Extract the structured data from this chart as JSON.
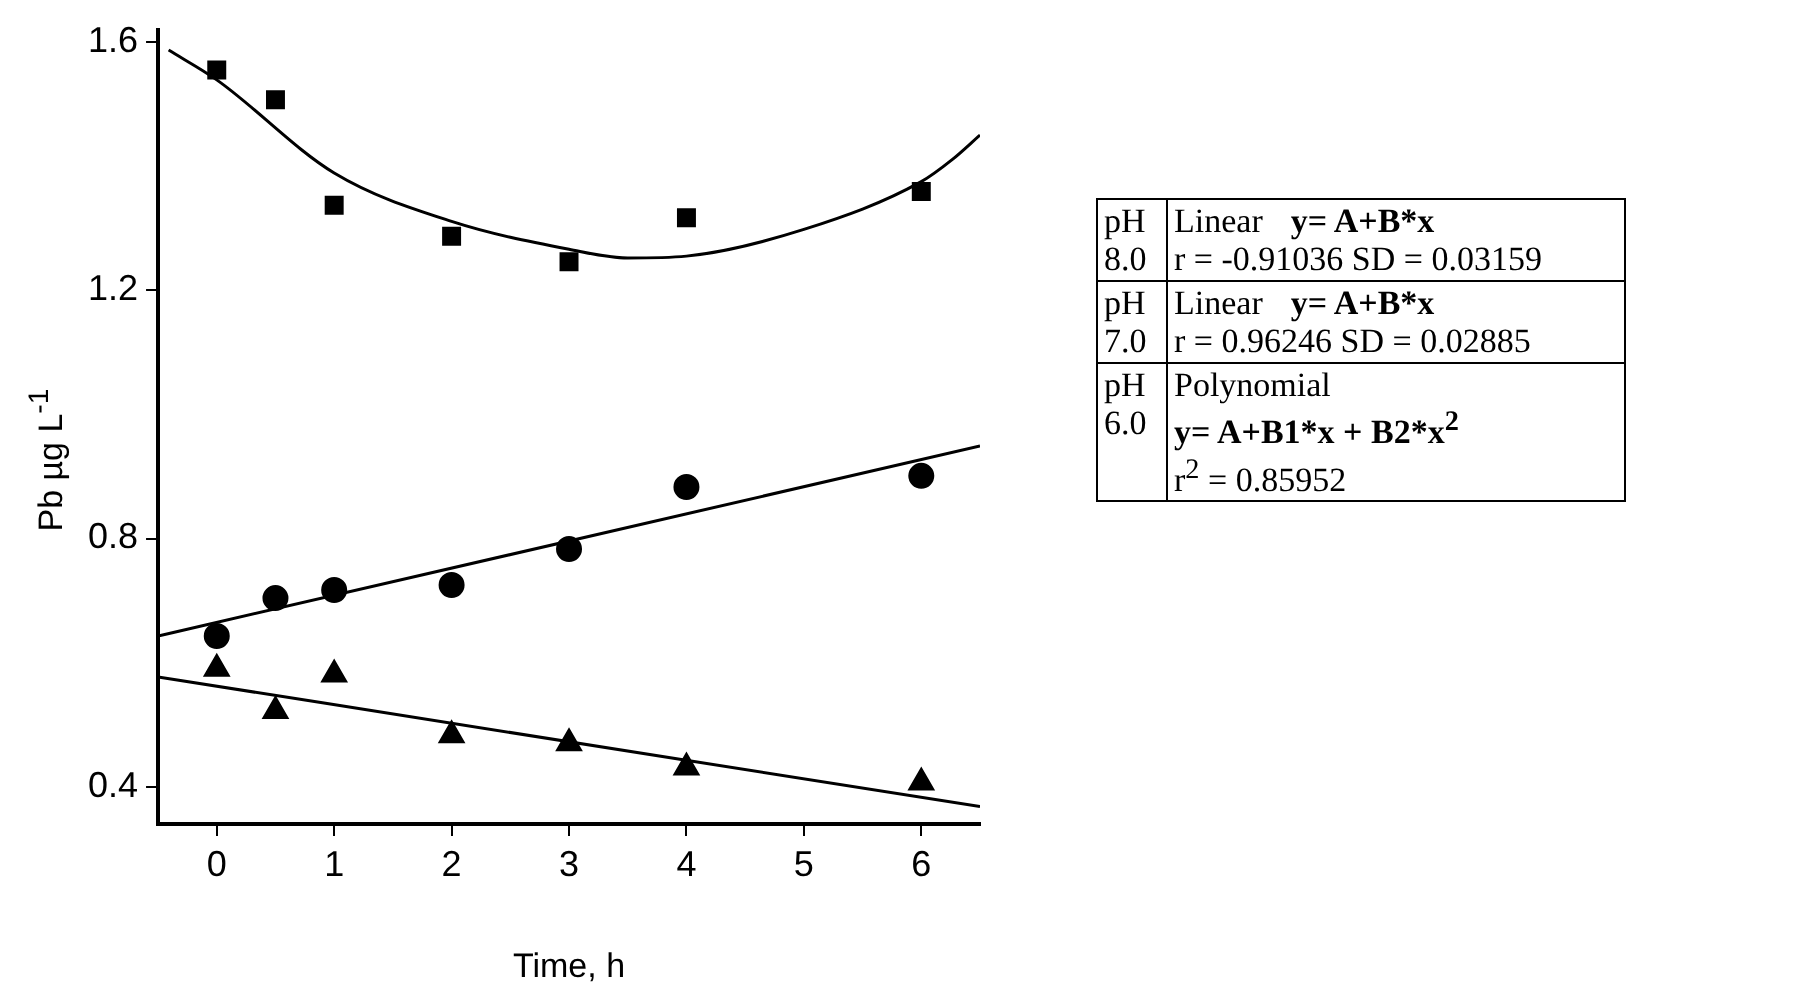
{
  "chart_data": {
    "type": "scatter",
    "xlabel": "Time, h",
    "ylabel": "Pb µg L$^{-1}$",
    "xlim": [
      -0.5,
      6.5
    ],
    "xticks": [
      0,
      1,
      2,
      3,
      4,
      5,
      6
    ],
    "ylim": [
      0.34,
      1.62
    ],
    "yticks": [
      0.4,
      0.8,
      1.2,
      1.6
    ],
    "grid": false,
    "legend": false,
    "series": [
      {
        "marker": "square",
        "color": "#000000",
        "x": [
          0,
          0.5,
          1,
          2,
          3,
          4,
          6
        ],
        "values": [
          1.555,
          1.507,
          1.337,
          1.287,
          1.246,
          1.317,
          1.359
        ]
      },
      {
        "marker": "circle",
        "color": "#000000",
        "x": [
          0,
          0.5,
          1,
          2,
          3,
          4,
          6
        ],
        "values": [
          0.643,
          0.704,
          0.717,
          0.725,
          0.783,
          0.883,
          0.901
        ]
      },
      {
        "marker": "triangle",
        "color": "#000000",
        "x": [
          0,
          0.5,
          1,
          2,
          3,
          4,
          6
        ],
        "values": [
          0.59,
          0.522,
          0.581,
          0.483,
          0.47,
          0.431,
          0.407
        ]
      },
      {
        "type": "line",
        "marker": "none",
        "color": "#000000",
        "x": [
          -0.41,
          0,
          1,
          2,
          3,
          3.5,
          4,
          5,
          6,
          6.26,
          6.5
        ],
        "values": [
          1.587,
          1.539,
          1.389,
          1.311,
          1.266,
          1.252,
          1.255,
          1.298,
          1.375,
          1.41,
          1.45
        ]
      },
      {
        "type": "line",
        "marker": "none",
        "color": "#000000",
        "x": [
          -0.5,
          6.5
        ],
        "values": [
          0.643,
          0.949
        ]
      },
      {
        "type": "line",
        "marker": "none",
        "color": "#000000",
        "x": [
          -0.5,
          6.5
        ],
        "values": [
          0.577,
          0.368
        ]
      }
    ],
    "annotations": [
      "pH 8.0",
      "Linear",
      "y= A+B*x",
      "r = -0.91036 SD = 0.03159",
      "pH 7.0",
      "Linear",
      "y= A+B*x",
      "r =  0.96246 SD = 0.02885",
      "pH 6.0",
      "Polynomial",
      "y= A+B1*x + B2*x$^{2}$",
      "r$^{2}$ = 0.85952"
    ]
  }
}
